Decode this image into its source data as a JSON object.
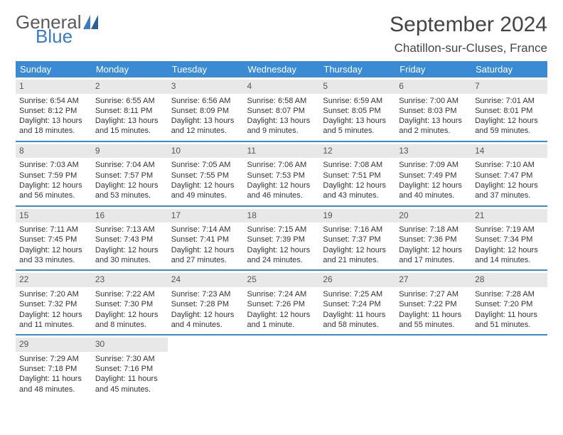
{
  "brand": {
    "general": "General",
    "blue": "Blue"
  },
  "header": {
    "title": "September 2024",
    "location": "Chatillon-sur-Cluses, France"
  },
  "theme": {
    "header_bg": "#3b8bd4",
    "header_fg": "#ffffff",
    "daynum_bg": "#e8e8e8",
    "text_color": "#333333",
    "logo_blue": "#3b7bbf"
  },
  "calendar": {
    "day_headers": [
      "Sunday",
      "Monday",
      "Tuesday",
      "Wednesday",
      "Thursday",
      "Friday",
      "Saturday"
    ],
    "weeks": [
      [
        {
          "num": "1",
          "sunrise": "Sunrise: 6:54 AM",
          "sunset": "Sunset: 8:12 PM",
          "daylight": "Daylight: 13 hours and 18 minutes."
        },
        {
          "num": "2",
          "sunrise": "Sunrise: 6:55 AM",
          "sunset": "Sunset: 8:11 PM",
          "daylight": "Daylight: 13 hours and 15 minutes."
        },
        {
          "num": "3",
          "sunrise": "Sunrise: 6:56 AM",
          "sunset": "Sunset: 8:09 PM",
          "daylight": "Daylight: 13 hours and 12 minutes."
        },
        {
          "num": "4",
          "sunrise": "Sunrise: 6:58 AM",
          "sunset": "Sunset: 8:07 PM",
          "daylight": "Daylight: 13 hours and 9 minutes."
        },
        {
          "num": "5",
          "sunrise": "Sunrise: 6:59 AM",
          "sunset": "Sunset: 8:05 PM",
          "daylight": "Daylight: 13 hours and 5 minutes."
        },
        {
          "num": "6",
          "sunrise": "Sunrise: 7:00 AM",
          "sunset": "Sunset: 8:03 PM",
          "daylight": "Daylight: 13 hours and 2 minutes."
        },
        {
          "num": "7",
          "sunrise": "Sunrise: 7:01 AM",
          "sunset": "Sunset: 8:01 PM",
          "daylight": "Daylight: 12 hours and 59 minutes."
        }
      ],
      [
        {
          "num": "8",
          "sunrise": "Sunrise: 7:03 AM",
          "sunset": "Sunset: 7:59 PM",
          "daylight": "Daylight: 12 hours and 56 minutes."
        },
        {
          "num": "9",
          "sunrise": "Sunrise: 7:04 AM",
          "sunset": "Sunset: 7:57 PM",
          "daylight": "Daylight: 12 hours and 53 minutes."
        },
        {
          "num": "10",
          "sunrise": "Sunrise: 7:05 AM",
          "sunset": "Sunset: 7:55 PM",
          "daylight": "Daylight: 12 hours and 49 minutes."
        },
        {
          "num": "11",
          "sunrise": "Sunrise: 7:06 AM",
          "sunset": "Sunset: 7:53 PM",
          "daylight": "Daylight: 12 hours and 46 minutes."
        },
        {
          "num": "12",
          "sunrise": "Sunrise: 7:08 AM",
          "sunset": "Sunset: 7:51 PM",
          "daylight": "Daylight: 12 hours and 43 minutes."
        },
        {
          "num": "13",
          "sunrise": "Sunrise: 7:09 AM",
          "sunset": "Sunset: 7:49 PM",
          "daylight": "Daylight: 12 hours and 40 minutes."
        },
        {
          "num": "14",
          "sunrise": "Sunrise: 7:10 AM",
          "sunset": "Sunset: 7:47 PM",
          "daylight": "Daylight: 12 hours and 37 minutes."
        }
      ],
      [
        {
          "num": "15",
          "sunrise": "Sunrise: 7:11 AM",
          "sunset": "Sunset: 7:45 PM",
          "daylight": "Daylight: 12 hours and 33 minutes."
        },
        {
          "num": "16",
          "sunrise": "Sunrise: 7:13 AM",
          "sunset": "Sunset: 7:43 PM",
          "daylight": "Daylight: 12 hours and 30 minutes."
        },
        {
          "num": "17",
          "sunrise": "Sunrise: 7:14 AM",
          "sunset": "Sunset: 7:41 PM",
          "daylight": "Daylight: 12 hours and 27 minutes."
        },
        {
          "num": "18",
          "sunrise": "Sunrise: 7:15 AM",
          "sunset": "Sunset: 7:39 PM",
          "daylight": "Daylight: 12 hours and 24 minutes."
        },
        {
          "num": "19",
          "sunrise": "Sunrise: 7:16 AM",
          "sunset": "Sunset: 7:37 PM",
          "daylight": "Daylight: 12 hours and 21 minutes."
        },
        {
          "num": "20",
          "sunrise": "Sunrise: 7:18 AM",
          "sunset": "Sunset: 7:36 PM",
          "daylight": "Daylight: 12 hours and 17 minutes."
        },
        {
          "num": "21",
          "sunrise": "Sunrise: 7:19 AM",
          "sunset": "Sunset: 7:34 PM",
          "daylight": "Daylight: 12 hours and 14 minutes."
        }
      ],
      [
        {
          "num": "22",
          "sunrise": "Sunrise: 7:20 AM",
          "sunset": "Sunset: 7:32 PM",
          "daylight": "Daylight: 12 hours and 11 minutes."
        },
        {
          "num": "23",
          "sunrise": "Sunrise: 7:22 AM",
          "sunset": "Sunset: 7:30 PM",
          "daylight": "Daylight: 12 hours and 8 minutes."
        },
        {
          "num": "24",
          "sunrise": "Sunrise: 7:23 AM",
          "sunset": "Sunset: 7:28 PM",
          "daylight": "Daylight: 12 hours and 4 minutes."
        },
        {
          "num": "25",
          "sunrise": "Sunrise: 7:24 AM",
          "sunset": "Sunset: 7:26 PM",
          "daylight": "Daylight: 12 hours and 1 minute."
        },
        {
          "num": "26",
          "sunrise": "Sunrise: 7:25 AM",
          "sunset": "Sunset: 7:24 PM",
          "daylight": "Daylight: 11 hours and 58 minutes."
        },
        {
          "num": "27",
          "sunrise": "Sunrise: 7:27 AM",
          "sunset": "Sunset: 7:22 PM",
          "daylight": "Daylight: 11 hours and 55 minutes."
        },
        {
          "num": "28",
          "sunrise": "Sunrise: 7:28 AM",
          "sunset": "Sunset: 7:20 PM",
          "daylight": "Daylight: 11 hours and 51 minutes."
        }
      ],
      [
        {
          "num": "29",
          "sunrise": "Sunrise: 7:29 AM",
          "sunset": "Sunset: 7:18 PM",
          "daylight": "Daylight: 11 hours and 48 minutes."
        },
        {
          "num": "30",
          "sunrise": "Sunrise: 7:30 AM",
          "sunset": "Sunset: 7:16 PM",
          "daylight": "Daylight: 11 hours and 45 minutes."
        },
        null,
        null,
        null,
        null,
        null
      ]
    ]
  }
}
